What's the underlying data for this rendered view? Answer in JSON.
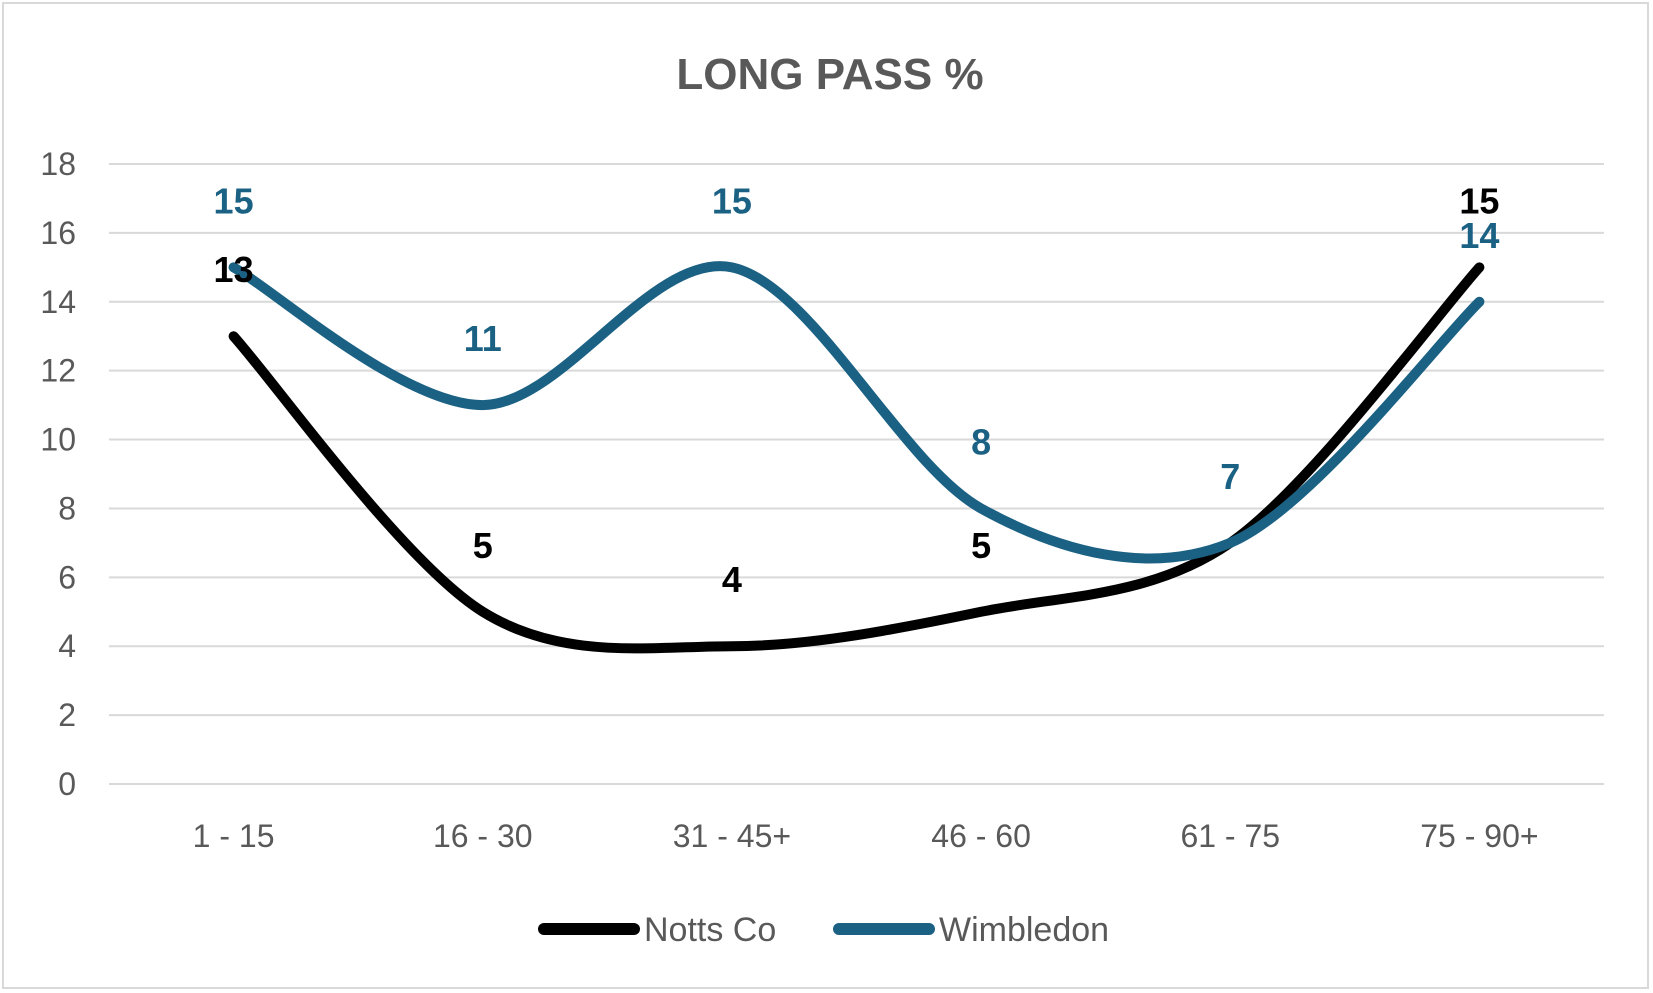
{
  "chart_data": {
    "type": "line",
    "title": "LONG PASS %",
    "xlabel": "",
    "ylabel": "",
    "categories": [
      "1 - 15",
      "16 - 30",
      "31 - 45+",
      "46 - 60",
      "61 - 75",
      "75 - 90+"
    ],
    "ylim": [
      0,
      18
    ],
    "yticks": [
      0,
      2,
      4,
      6,
      8,
      10,
      12,
      14,
      16,
      18
    ],
    "grid": true,
    "smoothed": true,
    "legend_position": "bottom",
    "series": [
      {
        "name": "Notts Co",
        "color": "#000000",
        "label_color": "#000000",
        "values": [
          13,
          5,
          4,
          5,
          7,
          15
        ],
        "labels": [
          "13",
          "5",
          "4",
          "5",
          "",
          "15"
        ]
      },
      {
        "name": "Wimbledon",
        "color": "#1b6184",
        "label_color": "#1b6184",
        "values": [
          15,
          11,
          15,
          8,
          7,
          14
        ],
        "labels": [
          "15",
          "11",
          "15",
          "8",
          "7",
          "14"
        ]
      }
    ]
  }
}
